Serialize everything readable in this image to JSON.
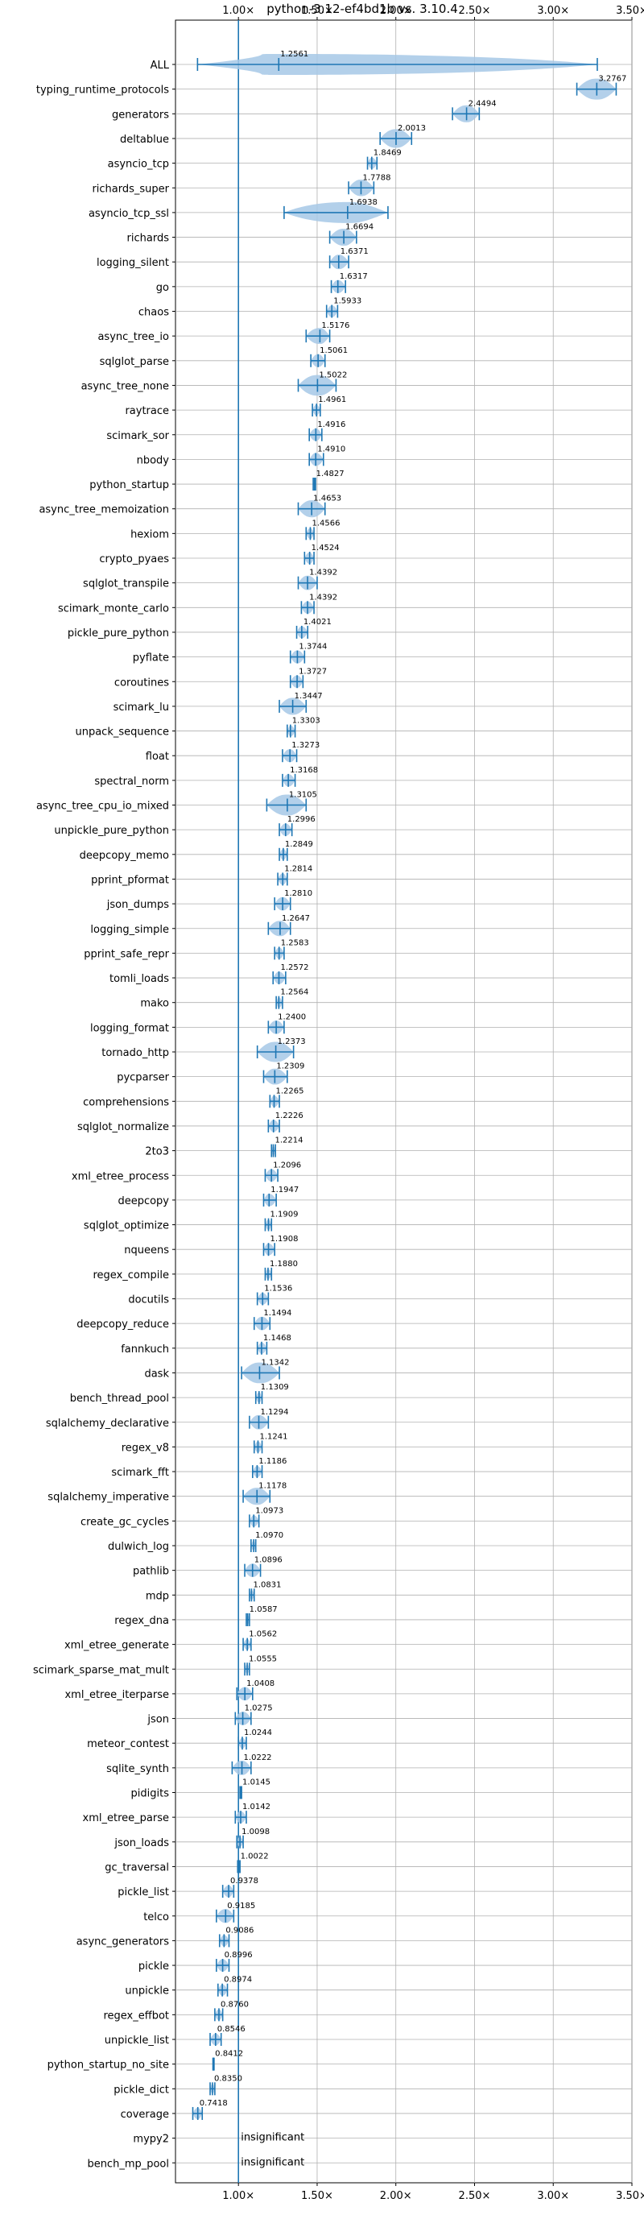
{
  "chart_data": {
    "type": "violin",
    "title": "python-3.12-ef4bd1b vs. 3.10.4",
    "xlim": [
      0.6,
      3.5
    ],
    "xticks": [
      {
        "value": 1.0,
        "label": "1.00×"
      },
      {
        "value": 1.5,
        "label": "1.50×"
      },
      {
        "value": 2.0,
        "label": "2.00×"
      },
      {
        "value": 2.5,
        "label": "2.50×"
      },
      {
        "value": 3.0,
        "label": "3.00×"
      },
      {
        "value": 3.5,
        "label": "3.50×"
      }
    ],
    "reference_line": 1.0,
    "grid": true,
    "colors": {
      "violin": "#a6c8e6",
      "line": "#1f77b4"
    },
    "benchmarks": [
      {
        "name": "ALL",
        "value": 1.2561,
        "label": "1.2561",
        "lo": 0.74,
        "hi": 3.28
      },
      {
        "name": "typing_runtime_protocols",
        "value": 3.2767,
        "label": "3.2767",
        "lo": 3.15,
        "hi": 3.4
      },
      {
        "name": "generators",
        "value": 2.4494,
        "label": "2.4494",
        "lo": 2.36,
        "hi": 2.53
      },
      {
        "name": "deltablue",
        "value": 2.0013,
        "label": "2.0013",
        "lo": 1.9,
        "hi": 2.1
      },
      {
        "name": "asyncio_tcp",
        "value": 1.8469,
        "label": "1.8469",
        "lo": 1.82,
        "hi": 1.88
      },
      {
        "name": "richards_super",
        "value": 1.7788,
        "label": "1.7788",
        "lo": 1.7,
        "hi": 1.86
      },
      {
        "name": "asyncio_tcp_ssl",
        "value": 1.6938,
        "label": "1.6938",
        "lo": 1.29,
        "hi": 1.95
      },
      {
        "name": "richards",
        "value": 1.6694,
        "label": "1.6694",
        "lo": 1.58,
        "hi": 1.75
      },
      {
        "name": "logging_silent",
        "value": 1.6371,
        "label": "1.6371",
        "lo": 1.58,
        "hi": 1.7
      },
      {
        "name": "go",
        "value": 1.6317,
        "label": "1.6317",
        "lo": 1.59,
        "hi": 1.68
      },
      {
        "name": "chaos",
        "value": 1.5933,
        "label": "1.5933",
        "lo": 1.56,
        "hi": 1.63
      },
      {
        "name": "async_tree_io",
        "value": 1.5176,
        "label": "1.5176",
        "lo": 1.43,
        "hi": 1.58
      },
      {
        "name": "sqlglot_parse",
        "value": 1.5061,
        "label": "1.5061",
        "lo": 1.46,
        "hi": 1.55
      },
      {
        "name": "async_tree_none",
        "value": 1.5022,
        "label": "1.5022",
        "lo": 1.38,
        "hi": 1.62
      },
      {
        "name": "raytrace",
        "value": 1.4961,
        "label": "1.4961",
        "lo": 1.47,
        "hi": 1.52
      },
      {
        "name": "scimark_sor",
        "value": 1.4916,
        "label": "1.4916",
        "lo": 1.45,
        "hi": 1.53
      },
      {
        "name": "nbody",
        "value": 1.491,
        "label": "1.4910",
        "lo": 1.45,
        "hi": 1.54
      },
      {
        "name": "python_startup",
        "value": 1.4827,
        "label": "1.4827",
        "lo": 1.475,
        "hi": 1.49
      },
      {
        "name": "async_tree_memoization",
        "value": 1.4653,
        "label": "1.4653",
        "lo": 1.38,
        "hi": 1.55
      },
      {
        "name": "hexiom",
        "value": 1.4566,
        "label": "1.4566",
        "lo": 1.43,
        "hi": 1.48
      },
      {
        "name": "crypto_pyaes",
        "value": 1.4524,
        "label": "1.4524",
        "lo": 1.42,
        "hi": 1.48
      },
      {
        "name": "sqlglot_transpile",
        "value": 1.4392,
        "label": "1.4392",
        "lo": 1.38,
        "hi": 1.5
      },
      {
        "name": "scimark_monte_carlo",
        "value": 1.4392,
        "label": "1.4392",
        "lo": 1.4,
        "hi": 1.48
      },
      {
        "name": "pickle_pure_python",
        "value": 1.4021,
        "label": "1.4021",
        "lo": 1.37,
        "hi": 1.44
      },
      {
        "name": "pyflate",
        "value": 1.3744,
        "label": "1.3744",
        "lo": 1.33,
        "hi": 1.42
      },
      {
        "name": "coroutines",
        "value": 1.3727,
        "label": "1.3727",
        "lo": 1.33,
        "hi": 1.41
      },
      {
        "name": "scimark_lu",
        "value": 1.3447,
        "label": "1.3447",
        "lo": 1.26,
        "hi": 1.43
      },
      {
        "name": "unpack_sequence",
        "value": 1.3303,
        "label": "1.3303",
        "lo": 1.31,
        "hi": 1.36
      },
      {
        "name": "float",
        "value": 1.3273,
        "label": "1.3273",
        "lo": 1.28,
        "hi": 1.37
      },
      {
        "name": "spectral_norm",
        "value": 1.3168,
        "label": "1.3168",
        "lo": 1.28,
        "hi": 1.36
      },
      {
        "name": "async_tree_cpu_io_mixed",
        "value": 1.3105,
        "label": "1.3105",
        "lo": 1.18,
        "hi": 1.43
      },
      {
        "name": "unpickle_pure_python",
        "value": 1.2996,
        "label": "1.2996",
        "lo": 1.26,
        "hi": 1.34
      },
      {
        "name": "deepcopy_memo",
        "value": 1.2849,
        "label": "1.2849",
        "lo": 1.26,
        "hi": 1.31
      },
      {
        "name": "pprint_pformat",
        "value": 1.2814,
        "label": "1.2814",
        "lo": 1.25,
        "hi": 1.31
      },
      {
        "name": "json_dumps",
        "value": 1.281,
        "label": "1.2810",
        "lo": 1.23,
        "hi": 1.33
      },
      {
        "name": "logging_simple",
        "value": 1.2647,
        "label": "1.2647",
        "lo": 1.19,
        "hi": 1.33
      },
      {
        "name": "pprint_safe_repr",
        "value": 1.2583,
        "label": "1.2583",
        "lo": 1.23,
        "hi": 1.29
      },
      {
        "name": "tomli_loads",
        "value": 1.2572,
        "label": "1.2572",
        "lo": 1.22,
        "hi": 1.3
      },
      {
        "name": "mako",
        "value": 1.2564,
        "label": "1.2564",
        "lo": 1.24,
        "hi": 1.28
      },
      {
        "name": "logging_format",
        "value": 1.24,
        "label": "1.2400",
        "lo": 1.19,
        "hi": 1.29
      },
      {
        "name": "tornado_http",
        "value": 1.2373,
        "label": "1.2373",
        "lo": 1.12,
        "hi": 1.35
      },
      {
        "name": "pycparser",
        "value": 1.2309,
        "label": "1.2309",
        "lo": 1.16,
        "hi": 1.31
      },
      {
        "name": "comprehensions",
        "value": 1.2265,
        "label": "1.2265",
        "lo": 1.2,
        "hi": 1.26
      },
      {
        "name": "sqlglot_normalize",
        "value": 1.2226,
        "label": "1.2226",
        "lo": 1.19,
        "hi": 1.26
      },
      {
        "name": "2to3",
        "value": 1.2214,
        "label": "1.2214",
        "lo": 1.21,
        "hi": 1.235
      },
      {
        "name": "xml_etree_process",
        "value": 1.2096,
        "label": "1.2096",
        "lo": 1.17,
        "hi": 1.25
      },
      {
        "name": "deepcopy",
        "value": 1.1947,
        "label": "1.1947",
        "lo": 1.16,
        "hi": 1.24
      },
      {
        "name": "sqlglot_optimize",
        "value": 1.1909,
        "label": "1.1909",
        "lo": 1.17,
        "hi": 1.21
      },
      {
        "name": "nqueens",
        "value": 1.1908,
        "label": "1.1908",
        "lo": 1.16,
        "hi": 1.23
      },
      {
        "name": "regex_compile",
        "value": 1.188,
        "label": "1.1880",
        "lo": 1.17,
        "hi": 1.21
      },
      {
        "name": "docutils",
        "value": 1.1536,
        "label": "1.1536",
        "lo": 1.12,
        "hi": 1.19
      },
      {
        "name": "deepcopy_reduce",
        "value": 1.1494,
        "label": "1.1494",
        "lo": 1.1,
        "hi": 1.2
      },
      {
        "name": "fannkuch",
        "value": 1.1468,
        "label": "1.1468",
        "lo": 1.12,
        "hi": 1.18
      },
      {
        "name": "dask",
        "value": 1.1342,
        "label": "1.1342",
        "lo": 1.02,
        "hi": 1.26
      },
      {
        "name": "bench_thread_pool",
        "value": 1.1309,
        "label": "1.1309",
        "lo": 1.11,
        "hi": 1.15
      },
      {
        "name": "sqlalchemy_declarative",
        "value": 1.1294,
        "label": "1.1294",
        "lo": 1.07,
        "hi": 1.19
      },
      {
        "name": "regex_v8",
        "value": 1.1241,
        "label": "1.1241",
        "lo": 1.1,
        "hi": 1.15
      },
      {
        "name": "scimark_fft",
        "value": 1.1186,
        "label": "1.1186",
        "lo": 1.09,
        "hi": 1.15
      },
      {
        "name": "sqlalchemy_imperative",
        "value": 1.1178,
        "label": "1.1178",
        "lo": 1.03,
        "hi": 1.2
      },
      {
        "name": "create_gc_cycles",
        "value": 1.0973,
        "label": "1.0973",
        "lo": 1.07,
        "hi": 1.13
      },
      {
        "name": "dulwich_log",
        "value": 1.097,
        "label": "1.0970",
        "lo": 1.08,
        "hi": 1.11
      },
      {
        "name": "pathlib",
        "value": 1.0896,
        "label": "1.0896",
        "lo": 1.04,
        "hi": 1.14
      },
      {
        "name": "mdp",
        "value": 1.0831,
        "label": "1.0831",
        "lo": 1.07,
        "hi": 1.1
      },
      {
        "name": "regex_dna",
        "value": 1.0587,
        "label": "1.0587",
        "lo": 1.05,
        "hi": 1.07
      },
      {
        "name": "xml_etree_generate",
        "value": 1.0562,
        "label": "1.0562",
        "lo": 1.03,
        "hi": 1.08
      },
      {
        "name": "scimark_sparse_mat_mult",
        "value": 1.0555,
        "label": "1.0555",
        "lo": 1.04,
        "hi": 1.07
      },
      {
        "name": "xml_etree_iterparse",
        "value": 1.0408,
        "label": "1.0408",
        "lo": 0.99,
        "hi": 1.09
      },
      {
        "name": "json",
        "value": 1.0275,
        "label": "1.0275",
        "lo": 0.98,
        "hi": 1.08
      },
      {
        "name": "meteor_contest",
        "value": 1.0244,
        "label": "1.0244",
        "lo": 1.0,
        "hi": 1.05
      },
      {
        "name": "sqlite_synth",
        "value": 1.0222,
        "label": "1.0222",
        "lo": 0.96,
        "hi": 1.08
      },
      {
        "name": "pidigits",
        "value": 1.0145,
        "label": "1.0145",
        "lo": 1.01,
        "hi": 1.02
      },
      {
        "name": "xml_etree_parse",
        "value": 1.0142,
        "label": "1.0142",
        "lo": 0.98,
        "hi": 1.05
      },
      {
        "name": "json_loads",
        "value": 1.0098,
        "label": "1.0098",
        "lo": 0.99,
        "hi": 1.03
      },
      {
        "name": "gc_traversal",
        "value": 1.0022,
        "label": "1.0022",
        "lo": 0.995,
        "hi": 1.01
      },
      {
        "name": "pickle_list",
        "value": 0.9378,
        "label": "0.9378",
        "lo": 0.9,
        "hi": 0.97
      },
      {
        "name": "telco",
        "value": 0.9185,
        "label": "0.9185",
        "lo": 0.86,
        "hi": 0.97
      },
      {
        "name": "async_generators",
        "value": 0.9086,
        "label": "0.9086",
        "lo": 0.88,
        "hi": 0.94
      },
      {
        "name": "pickle",
        "value": 0.8996,
        "label": "0.8996",
        "lo": 0.86,
        "hi": 0.94
      },
      {
        "name": "unpickle",
        "value": 0.8974,
        "label": "0.8974",
        "lo": 0.87,
        "hi": 0.93
      },
      {
        "name": "regex_effbot",
        "value": 0.876,
        "label": "0.8760",
        "lo": 0.85,
        "hi": 0.9
      },
      {
        "name": "unpickle_list",
        "value": 0.8546,
        "label": "0.8546",
        "lo": 0.82,
        "hi": 0.89
      },
      {
        "name": "python_startup_no_site",
        "value": 0.8412,
        "label": "0.8412",
        "lo": 0.838,
        "hi": 0.845
      },
      {
        "name": "pickle_dict",
        "value": 0.835,
        "label": "0.8350",
        "lo": 0.82,
        "hi": 0.85
      },
      {
        "name": "coverage",
        "value": 0.7418,
        "label": "0.7418",
        "lo": 0.71,
        "hi": 0.77
      },
      {
        "name": "mypy2",
        "value": null,
        "label": "insignificant",
        "lo": null,
        "hi": null
      },
      {
        "name": "bench_mp_pool",
        "value": null,
        "label": "insignificant",
        "lo": null,
        "hi": null
      }
    ]
  }
}
